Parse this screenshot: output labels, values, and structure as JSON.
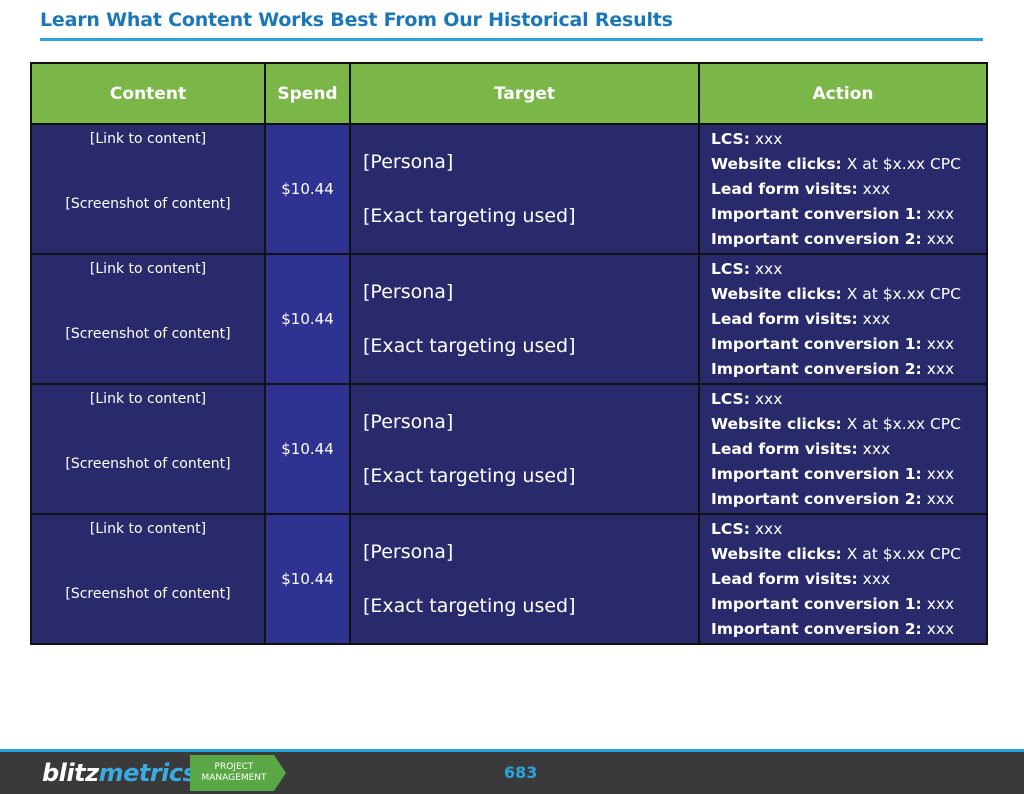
{
  "header": {
    "title": "Learn What Content Works Best From Our Historical Results"
  },
  "table": {
    "columns": [
      "Content",
      "Spend",
      "Target",
      "Action"
    ],
    "rows": [
      {
        "link": "[Link to content]",
        "screenshot": "[Screenshot of content]",
        "spend": "$10.44",
        "persona": "[Persona]",
        "targeting": "[Exact targeting used]",
        "actions": [
          {
            "label": "LCS:",
            "value": "xxx"
          },
          {
            "label": "Website clicks:",
            "value": "X at $x.xx CPC"
          },
          {
            "label": "Lead form visits:",
            "value": "xxx"
          },
          {
            "label": "Important conversion 1:",
            "value": "xxx"
          },
          {
            "label": "Important conversion 2:",
            "value": "xxx"
          }
        ]
      },
      {
        "link": "[Link to content]",
        "screenshot": "[Screenshot of content]",
        "spend": "$10.44",
        "persona": "[Persona]",
        "targeting": "[Exact targeting used]",
        "actions": [
          {
            "label": "LCS:",
            "value": "xxx"
          },
          {
            "label": "Website clicks:",
            "value": "X at $x.xx CPC"
          },
          {
            "label": "Lead form visits:",
            "value": "xxx"
          },
          {
            "label": "Important conversion 1:",
            "value": "xxx"
          },
          {
            "label": "Important conversion 2:",
            "value": "xxx"
          }
        ]
      },
      {
        "link": "[Link to content]",
        "screenshot": "[Screenshot of content]",
        "spend": "$10.44",
        "persona": "[Persona]",
        "targeting": "[Exact targeting used]",
        "actions": [
          {
            "label": "LCS:",
            "value": "xxx"
          },
          {
            "label": "Website clicks:",
            "value": "X at $x.xx CPC"
          },
          {
            "label": "Lead form visits:",
            "value": "xxx"
          },
          {
            "label": "Important conversion 1:",
            "value": "xxx"
          },
          {
            "label": "Important conversion 2:",
            "value": "xxx"
          }
        ]
      },
      {
        "link": "[Link to content]",
        "screenshot": "[Screenshot of content]",
        "spend": "$10.44",
        "persona": "[Persona]",
        "targeting": "[Exact targeting used]",
        "actions": [
          {
            "label": "LCS:",
            "value": "xxx"
          },
          {
            "label": "Website clicks:",
            "value": "X at $x.xx CPC"
          },
          {
            "label": "Lead form visits:",
            "value": "xxx"
          },
          {
            "label": "Important conversion 1:",
            "value": "xxx"
          },
          {
            "label": "Important conversion 2:",
            "value": "xxx"
          }
        ]
      }
    ]
  },
  "footer": {
    "logo": {
      "part1": "blitz",
      "part2": "metrics"
    },
    "badge": {
      "line1": "PROJECT",
      "line2": "MANAGEMENT"
    },
    "page": 683
  }
}
